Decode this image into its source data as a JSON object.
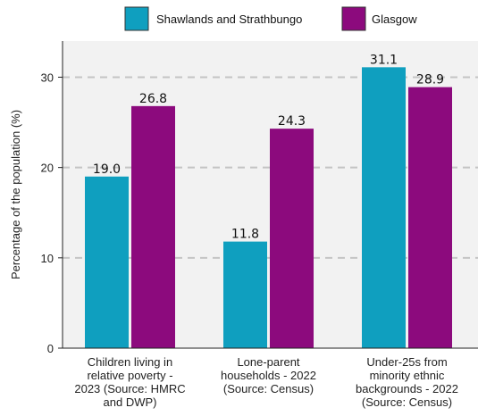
{
  "chart_data": {
    "type": "bar",
    "categories": [
      [
        "Children living in",
        "relative poverty -",
        "2023 (Source: HMRC",
        "and DWP)"
      ],
      [
        "Lone-parent",
        "households - 2022",
        "(Source: Census)"
      ],
      [
        "Under-25s from",
        "minority ethnic",
        "backgrounds - 2022",
        "(Source: Census)"
      ]
    ],
    "series": [
      {
        "name": "Shawlands and Strathbungo",
        "values": [
          19.0,
          11.8,
          31.1
        ],
        "color": "#0f9fbf"
      },
      {
        "name": "Glasgow",
        "values": [
          26.8,
          24.3,
          28.9
        ],
        "color": "#8c0a7d"
      }
    ],
    "ylabel": "Percentage of the population (%)",
    "ylim": [
      0,
      34
    ],
    "yticks": [
      0,
      10,
      20,
      30
    ],
    "legend_position": "top",
    "grid": "horizontal dashed",
    "plot_background": "#f2f2f2"
  }
}
